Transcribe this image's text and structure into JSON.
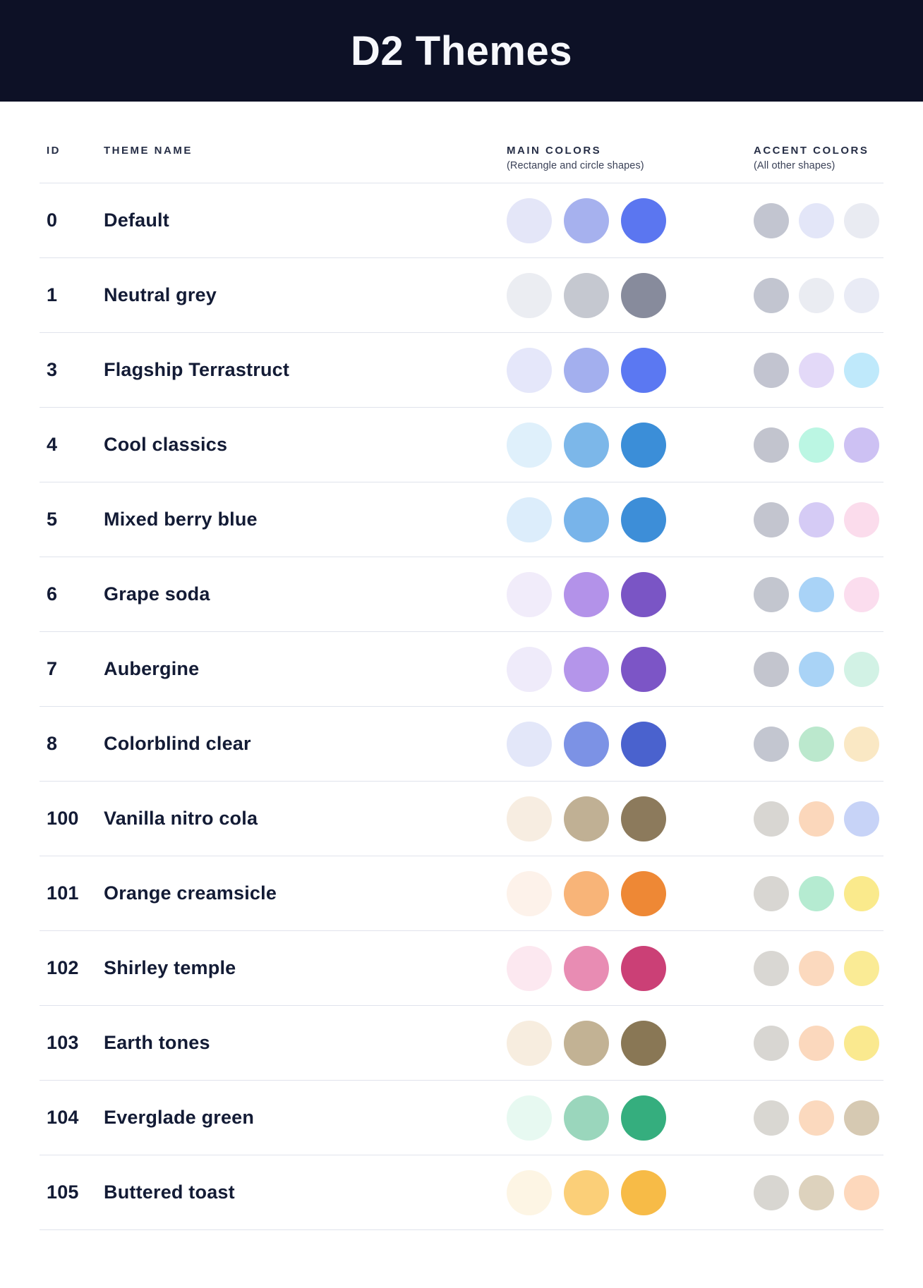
{
  "banner": {
    "title": "D2 Themes",
    "background": "#0D1126",
    "text_color": "#F7F8FC"
  },
  "table": {
    "columns": {
      "id_label": "ID",
      "name_label": "THEME NAME",
      "main_label": "MAIN COLORS",
      "main_sublabel": "(Rectangle and circle shapes)",
      "accent_label": "ACCENT COLORS",
      "accent_sublabel": "(All other shapes)"
    },
    "divider_color": "#E0E3EC",
    "themes": [
      {
        "id": "0",
        "name": "Default",
        "main_colors": [
          "#E4E6F8",
          "#A6B1EE",
          "#5B76F0"
        ],
        "accent_colors": [
          "#C2C5D0",
          "#E3E6F8",
          "#E9EBF2"
        ]
      },
      {
        "id": "1",
        "name": "Neutral grey",
        "main_colors": [
          "#EBEDF2",
          "#C5C8D0",
          "#878B9C"
        ],
        "accent_colors": [
          "#C2C5D0",
          "#EAECF2",
          "#E9EBF5"
        ]
      },
      {
        "id": "3",
        "name": "Flagship Terrastruct",
        "main_colors": [
          "#E5E7FA",
          "#A3AFEE",
          "#5B78F2"
        ],
        "accent_colors": [
          "#C2C4D0",
          "#E3D9F8",
          "#BFE9FB"
        ]
      },
      {
        "id": "4",
        "name": "Cool classics",
        "main_colors": [
          "#DFF0FB",
          "#7CB7E9",
          "#3B8ED8"
        ],
        "accent_colors": [
          "#C2C4CE",
          "#BBF6E3",
          "#CDC1F3"
        ]
      },
      {
        "id": "5",
        "name": "Mixed berry blue",
        "main_colors": [
          "#DCEDFB",
          "#78B4EA",
          "#3D8ED8"
        ],
        "accent_colors": [
          "#C3C5CF",
          "#D5CBF5",
          "#FBDCEC"
        ]
      },
      {
        "id": "6",
        "name": "Grape soda",
        "main_colors": [
          "#F1ECFA",
          "#B392E9",
          "#7A55C5"
        ],
        "accent_colors": [
          "#C3C6CF",
          "#A9D3F7",
          "#FBDDEE"
        ]
      },
      {
        "id": "7",
        "name": "Aubergine",
        "main_colors": [
          "#EFEBFA",
          "#B495EA",
          "#7C55C6"
        ],
        "accent_colors": [
          "#C3C5CE",
          "#A9D3F6",
          "#D2F2E5"
        ]
      },
      {
        "id": "8",
        "name": "Colorblind clear",
        "main_colors": [
          "#E3E7F9",
          "#7C92E5",
          "#4A62CE"
        ],
        "accent_colors": [
          "#C3C6D0",
          "#BBE8CD",
          "#FAE8C4"
        ]
      },
      {
        "id": "100",
        "name": "Vanilla nitro cola",
        "main_colors": [
          "#F7EDE1",
          "#C0B094",
          "#8C7A5C"
        ],
        "accent_colors": [
          "#D8D6D2",
          "#FBD7BB",
          "#C7D3F7"
        ]
      },
      {
        "id": "101",
        "name": "Orange creamsicle",
        "main_colors": [
          "#FDF2EA",
          "#F8B478",
          "#EE8835"
        ],
        "accent_colors": [
          "#D8D6D2",
          "#B5EBD1",
          "#FAEA8C"
        ]
      },
      {
        "id": "102",
        "name": "Shirley temple",
        "main_colors": [
          "#FCE8F0",
          "#E88CB3",
          "#CB4076"
        ],
        "accent_colors": [
          "#D9D7D3",
          "#FBD9BE",
          "#FAEB95"
        ]
      },
      {
        "id": "103",
        "name": "Earth tones",
        "main_colors": [
          "#F7EDDF",
          "#C2B294",
          "#897755"
        ],
        "accent_colors": [
          "#D8D6D2",
          "#FBD8BD",
          "#FAE98F"
        ]
      },
      {
        "id": "104",
        "name": "Everglade green",
        "main_colors": [
          "#E7F9F1",
          "#9AD6BC",
          "#35AE7E"
        ],
        "accent_colors": [
          "#D9D7D2",
          "#FBD9BE",
          "#D6C9B2"
        ]
      },
      {
        "id": "105",
        "name": "Buttered toast",
        "main_colors": [
          "#FDF5E4",
          "#FBCF78",
          "#F7BB47"
        ],
        "accent_colors": [
          "#D8D6D1",
          "#DDD2BD",
          "#FDD8BC"
        ]
      }
    ]
  }
}
